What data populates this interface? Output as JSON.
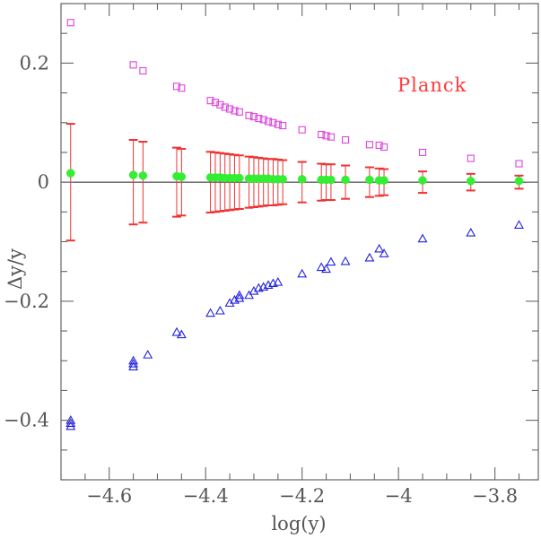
{
  "chart_data": {
    "type": "scatter",
    "title": "",
    "xlabel": "log(y)",
    "ylabel": "Δy/y",
    "xlim": [
      -4.7,
      -3.71
    ],
    "ylim": [
      -0.5,
      0.3
    ],
    "xticks": [
      -4.6,
      -4.4,
      -4.2,
      -4.0,
      -3.8
    ],
    "xtick_labels": [
      "−4.6",
      "−4.4",
      "−4.2",
      "−4",
      "−3.8"
    ],
    "yticks": [
      -0.4,
      -0.2,
      0.0,
      0.2
    ],
    "ytick_labels": [
      "−0.4",
      "−0.2",
      "0",
      "0.2"
    ],
    "zero_line": 0,
    "annotation": "Planck",
    "colors": {
      "upper": "#dd44dd",
      "lower": "#2222dd",
      "error": "#ee3333",
      "center": "#33ee33",
      "axis": "#666666",
      "zero": "#222222",
      "annotation": "#ff3b3b"
    },
    "series": [
      {
        "name": "upper",
        "marker": "square",
        "points": [
          [
            -4.68,
            0.268
          ],
          [
            -4.55,
            0.197
          ],
          [
            -4.53,
            0.187
          ],
          [
            -4.46,
            0.161
          ],
          [
            -4.45,
            0.158
          ],
          [
            -4.39,
            0.137
          ],
          [
            -4.38,
            0.134
          ],
          [
            -4.37,
            0.13
          ],
          [
            -4.36,
            0.126
          ],
          [
            -4.35,
            0.123
          ],
          [
            -4.34,
            0.12
          ],
          [
            -4.33,
            0.118
          ],
          [
            -4.31,
            0.112
          ],
          [
            -4.3,
            0.11
          ],
          [
            -4.29,
            0.107
          ],
          [
            -4.28,
            0.105
          ],
          [
            -4.27,
            0.102
          ],
          [
            -4.26,
            0.1
          ],
          [
            -4.25,
            0.097
          ],
          [
            -4.24,
            0.095
          ],
          [
            -4.2,
            0.088
          ],
          [
            -4.16,
            0.08
          ],
          [
            -4.15,
            0.078
          ],
          [
            -4.14,
            0.076
          ],
          [
            -4.11,
            0.071
          ],
          [
            -4.06,
            0.063
          ],
          [
            -4.04,
            0.062
          ],
          [
            -4.03,
            0.059
          ],
          [
            -3.95,
            0.05
          ],
          [
            -3.85,
            0.04
          ],
          [
            -3.75,
            0.031
          ]
        ]
      },
      {
        "name": "lower",
        "marker": "triangle",
        "points": [
          [
            -4.68,
            -0.4
          ],
          [
            -4.68,
            -0.405
          ],
          [
            -4.68,
            -0.41
          ],
          [
            -4.55,
            -0.3
          ],
          [
            -4.55,
            -0.305
          ],
          [
            -4.55,
            -0.31
          ],
          [
            -4.52,
            -0.29
          ],
          [
            -4.46,
            -0.252
          ],
          [
            -4.45,
            -0.256
          ],
          [
            -4.39,
            -0.22
          ],
          [
            -4.37,
            -0.216
          ],
          [
            -4.35,
            -0.203
          ],
          [
            -4.34,
            -0.198
          ],
          [
            -4.33,
            -0.195
          ],
          [
            -4.33,
            -0.19
          ],
          [
            -4.31,
            -0.19
          ],
          [
            -4.3,
            -0.183
          ],
          [
            -4.29,
            -0.178
          ],
          [
            -4.28,
            -0.176
          ],
          [
            -4.27,
            -0.173
          ],
          [
            -4.26,
            -0.17
          ],
          [
            -4.25,
            -0.168
          ],
          [
            -4.2,
            -0.154
          ],
          [
            -4.16,
            -0.143
          ],
          [
            -4.15,
            -0.146
          ],
          [
            -4.14,
            -0.134
          ],
          [
            -4.11,
            -0.133
          ],
          [
            -4.06,
            -0.127
          ],
          [
            -4.04,
            -0.112
          ],
          [
            -4.03,
            -0.12
          ],
          [
            -3.95,
            -0.095
          ],
          [
            -3.85,
            -0.085
          ],
          [
            -3.75,
            -0.072
          ]
        ]
      },
      {
        "name": "center",
        "marker": "circle",
        "points": [
          [
            -4.68,
            0.015
          ],
          [
            -4.55,
            0.012
          ],
          [
            -4.53,
            0.011
          ],
          [
            -4.46,
            0.01
          ],
          [
            -4.45,
            0.009
          ],
          [
            -4.39,
            0.008
          ],
          [
            -4.38,
            0.008
          ],
          [
            -4.37,
            0.008
          ],
          [
            -4.36,
            0.007
          ],
          [
            -4.35,
            0.007
          ],
          [
            -4.34,
            0.007
          ],
          [
            -4.33,
            0.007
          ],
          [
            -4.31,
            0.006
          ],
          [
            -4.3,
            0.006
          ],
          [
            -4.29,
            0.006
          ],
          [
            -4.28,
            0.006
          ],
          [
            -4.27,
            0.006
          ],
          [
            -4.26,
            0.005
          ],
          [
            -4.25,
            0.005
          ],
          [
            -4.24,
            0.005
          ],
          [
            -4.2,
            0.005
          ],
          [
            -4.16,
            0.004
          ],
          [
            -4.15,
            0.004
          ],
          [
            -4.14,
            0.004
          ],
          [
            -4.11,
            0.004
          ],
          [
            -4.06,
            0.004
          ],
          [
            -4.04,
            0.003
          ],
          [
            -4.03,
            0.003
          ],
          [
            -3.95,
            0.003
          ],
          [
            -3.85,
            0.002
          ],
          [
            -3.75,
            0.002
          ]
        ]
      }
    ],
    "error_bars": [
      [
        -4.68,
        0.098,
        -0.098
      ],
      [
        -4.55,
        0.071,
        -0.071
      ],
      [
        -4.53,
        0.068,
        -0.068
      ],
      [
        -4.46,
        0.058,
        -0.058
      ],
      [
        -4.45,
        0.056,
        -0.056
      ],
      [
        -4.39,
        0.051,
        -0.051
      ],
      [
        -4.38,
        0.05,
        -0.05
      ],
      [
        -4.37,
        0.049,
        -0.049
      ],
      [
        -4.36,
        0.048,
        -0.048
      ],
      [
        -4.35,
        0.047,
        -0.047
      ],
      [
        -4.34,
        0.046,
        -0.046
      ],
      [
        -4.33,
        0.045,
        -0.045
      ],
      [
        -4.31,
        0.043,
        -0.043
      ],
      [
        -4.3,
        0.042,
        -0.042
      ],
      [
        -4.29,
        0.041,
        -0.041
      ],
      [
        -4.28,
        0.04,
        -0.04
      ],
      [
        -4.27,
        0.039,
        -0.039
      ],
      [
        -4.26,
        0.039,
        -0.039
      ],
      [
        -4.25,
        0.038,
        -0.038
      ],
      [
        -4.24,
        0.037,
        -0.037
      ],
      [
        -4.2,
        0.034,
        -0.034
      ],
      [
        -4.16,
        0.031,
        -0.031
      ],
      [
        -4.15,
        0.03,
        -0.03
      ],
      [
        -4.14,
        0.03,
        -0.03
      ],
      [
        -4.11,
        0.028,
        -0.028
      ],
      [
        -4.06,
        0.025,
        -0.025
      ],
      [
        -4.04,
        0.023,
        -0.023
      ],
      [
        -4.03,
        0.022,
        -0.022
      ],
      [
        -3.95,
        0.018,
        -0.018
      ],
      [
        -3.85,
        0.014,
        -0.014
      ],
      [
        -3.75,
        0.011,
        -0.011
      ]
    ]
  }
}
